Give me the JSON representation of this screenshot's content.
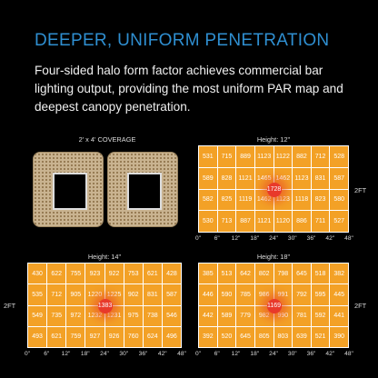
{
  "headline": "DEEPER, UNIFORM PENETRATION",
  "subtext": "Four-sided halo form factor achieves commercial bar lighting output, providing the most uniform PAR map and deepest canopy penetration.",
  "coverage_label": "2' x 4' COVERAGE",
  "colors": {
    "headline": "#2f8fd1",
    "cell": "#f3a126",
    "hotspot": "#e8392a"
  },
  "axis_ticks": [
    "0\"",
    "6\"",
    "12\"",
    "18\"",
    "24\"",
    "30\"",
    "36\"",
    "42\"",
    "48\""
  ],
  "side_label": "2FT",
  "maps": [
    {
      "title": "Height: 12\"",
      "rows": [
        [
          "531",
          "715",
          "889",
          "1123",
          "1122",
          "882",
          "712",
          "528"
        ],
        [
          "589",
          "828",
          "1121",
          "1465",
          "1462",
          "1123",
          "831",
          "587"
        ],
        [
          "582",
          "825",
          "1119",
          "1462",
          "1123",
          "1118",
          "823",
          "580"
        ],
        [
          "530",
          "713",
          "887",
          "1121",
          "1120",
          "886",
          "711",
          "527"
        ]
      ],
      "hotspot": "1728"
    },
    {
      "title": "Height: 14\"",
      "rows": [
        [
          "430",
          "622",
          "755",
          "923",
          "922",
          "753",
          "621",
          "428"
        ],
        [
          "535",
          "712",
          "905",
          "1220",
          "1225",
          "902",
          "831",
          "587"
        ],
        [
          "549",
          "735",
          "972",
          "1232",
          "1231",
          "975",
          "738",
          "546"
        ],
        [
          "493",
          "621",
          "759",
          "927",
          "926",
          "760",
          "624",
          "496"
        ]
      ],
      "hotspot": "1383"
    },
    {
      "title": "Height: 18\"",
      "rows": [
        [
          "385",
          "513",
          "642",
          "802",
          "798",
          "645",
          "518",
          "382"
        ],
        [
          "446",
          "590",
          "785",
          "986",
          "991",
          "792",
          "595",
          "445"
        ],
        [
          "442",
          "589",
          "779",
          "982",
          "990",
          "781",
          "592",
          "441"
        ],
        [
          "392",
          "520",
          "645",
          "805",
          "803",
          "639",
          "521",
          "390"
        ]
      ],
      "hotspot": "1169"
    }
  ]
}
